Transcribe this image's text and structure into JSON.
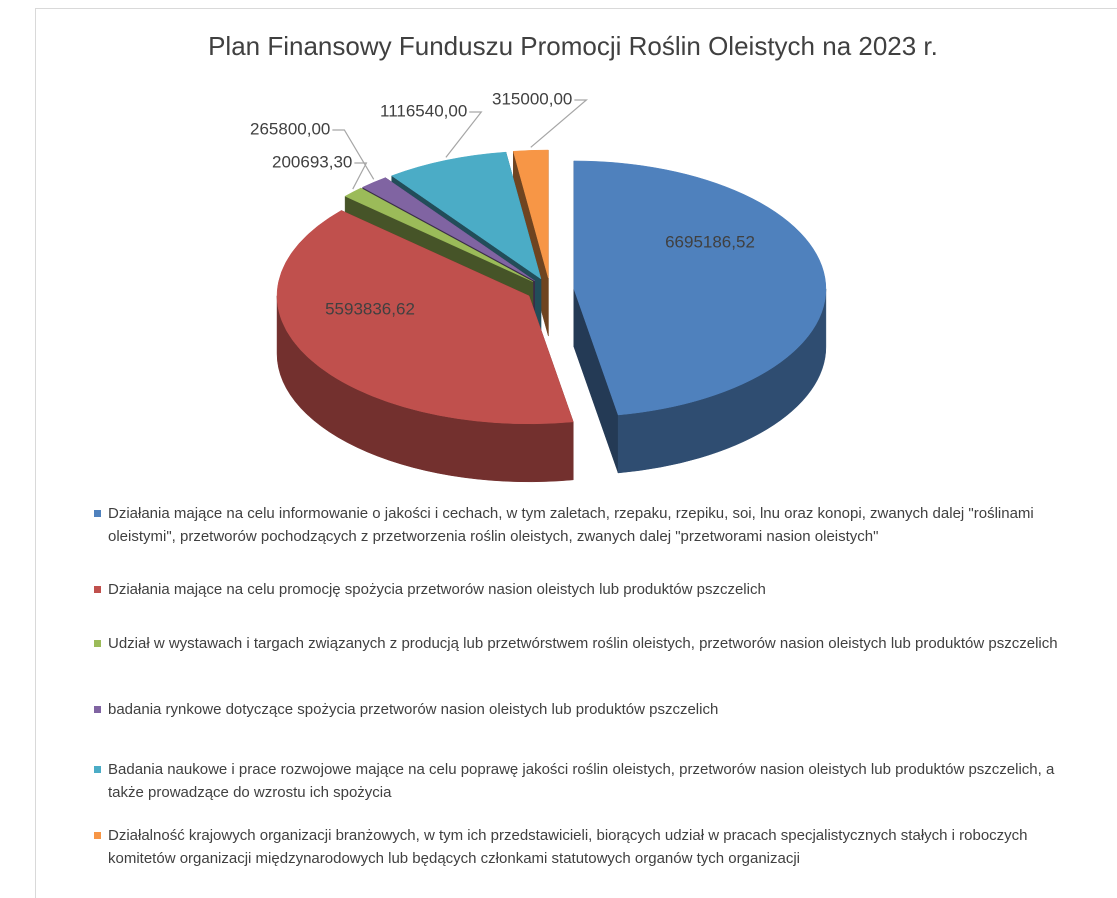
{
  "chart_data": {
    "type": "pie3d",
    "title": "Plan Finansowy Funduszu Promocji Roślin Oleistych na 2023 r.",
    "categories": [
      "Działania mające na celu informowanie o jakości i cechach, w tym zaletach, rzepaku, rzepiku, soi, lnu oraz konopi, zwanych dalej \"roślinami oleistymi\", przetworów pochodzących z przetworzenia roślin oleistych, zwanych dalej \"przetworami nasion oleistych\"",
      "Działania mające na celu promocję spożycia przetworów nasion oleistych lub produktów pszczelich",
      "Udział w wystawach i targach związanych z producją lub przetwórstwem roślin oleistych, przetworów nasion oleistych lub produktów pszczelich",
      "badania rynkowe dotyczące spożycia przetworów nasion oleistych lub produktów pszczelich",
      "Badania naukowe i prace rozwojowe mające na celu poprawę jakości roślin oleistych, przetworów nasion oleistych lub produktów pszczelich, a także prowadzące do wzrostu ich spożycia",
      "Działalność krajowych organizacji branżowych, w tym ich przedstawicieli, biorących udział w pracach specjalistycznych stałych i roboczych komitetów organizacji międzynarodowych lub będących członkami statutowych organów tych organizacji"
    ],
    "values": [
      6695186.52,
      5593836.62,
      200693.3,
      265800.0,
      1116540.0,
      315000.0
    ],
    "value_labels": [
      "6695186,52",
      "5593836,62",
      "200693,30",
      "265800,00",
      "1116540,00",
      "315000,00"
    ],
    "colors": [
      "#4f81bd",
      "#c0504d",
      "#9bbb59",
      "#8064a2",
      "#4bacc6",
      "#f79646"
    ],
    "legend": "bottom"
  }
}
